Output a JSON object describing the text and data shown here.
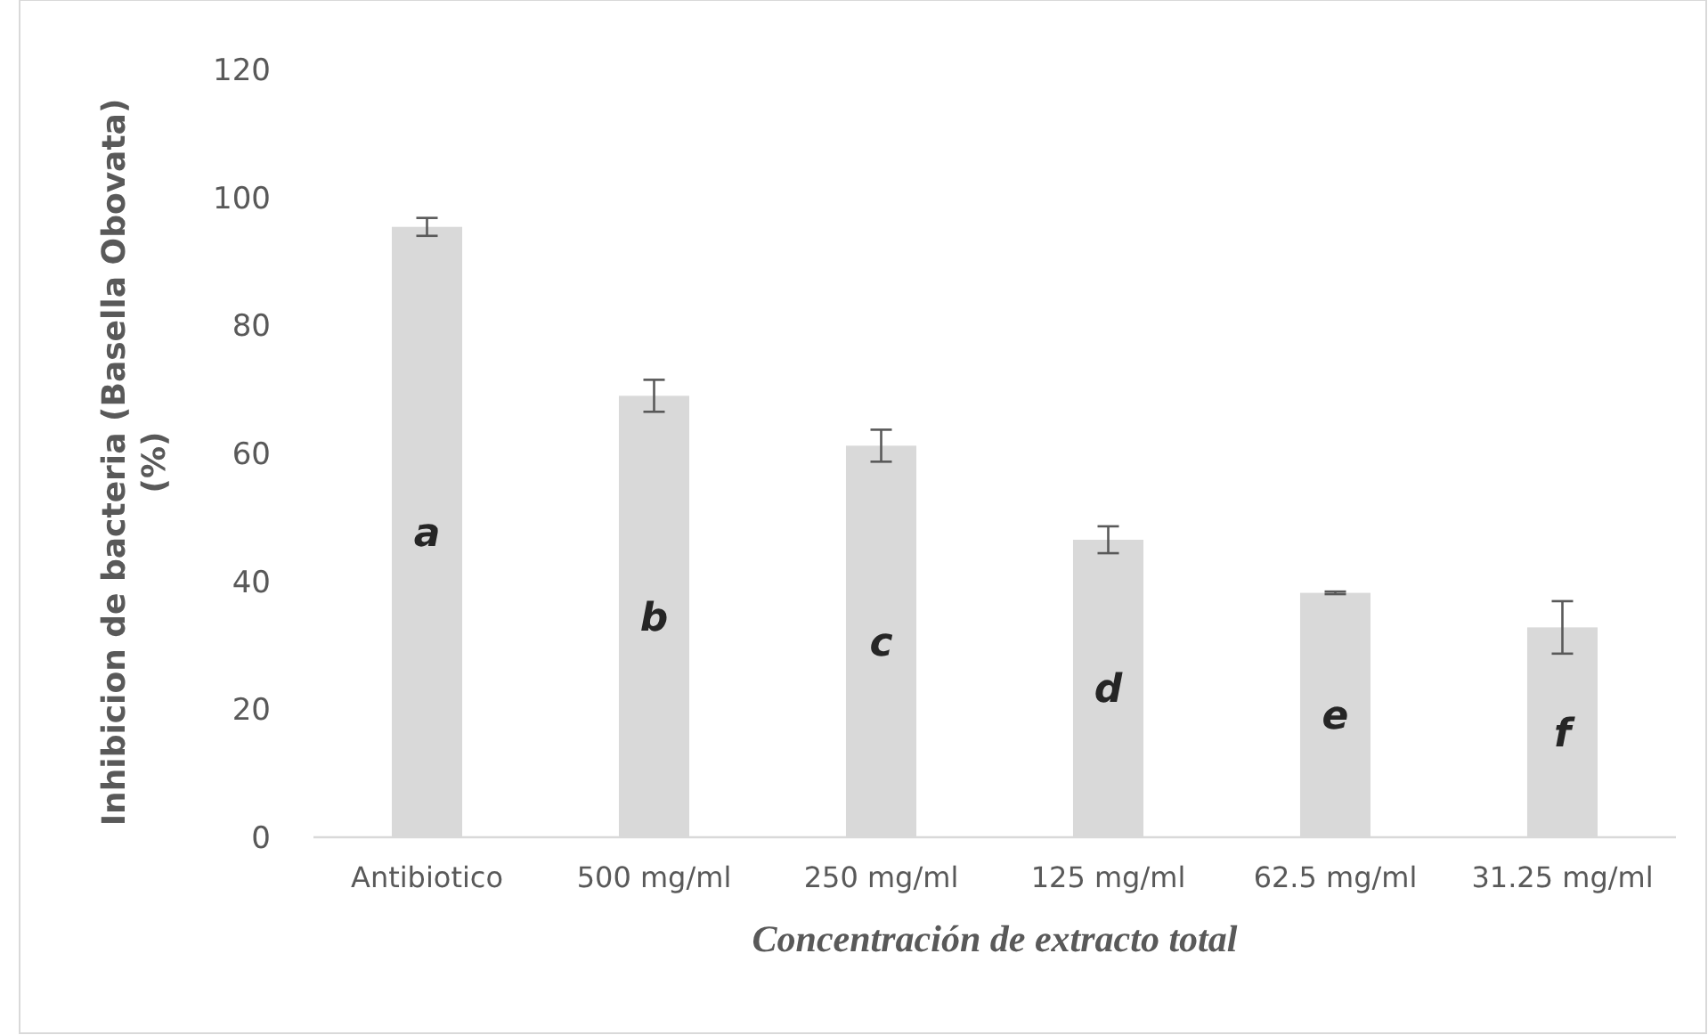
{
  "chart_data": {
    "type": "bar",
    "xlabel": "Concentración de extracto total",
    "ylabel": "Inhibicion de bacteria (Basella Obovata) (%)",
    "categories": [
      "Antibiotico",
      "500 mg/ml",
      "250 mg/ml",
      "125 mg/ml",
      "62.5 mg/ml",
      "31.25 mg/ml"
    ],
    "values": [
      95.4,
      69.0,
      61.2,
      46.5,
      38.2,
      32.8
    ],
    "errors": [
      1.4,
      2.5,
      2.5,
      2.1,
      0.2,
      4.1
    ],
    "color": "#d9d9d9",
    "ylim": [
      0,
      120
    ],
    "yticks": [
      0,
      20,
      40,
      60,
      80,
      100,
      120
    ],
    "grid": false,
    "annotations": [
      "a",
      "b",
      "c",
      "d",
      "e",
      "f"
    ]
  }
}
